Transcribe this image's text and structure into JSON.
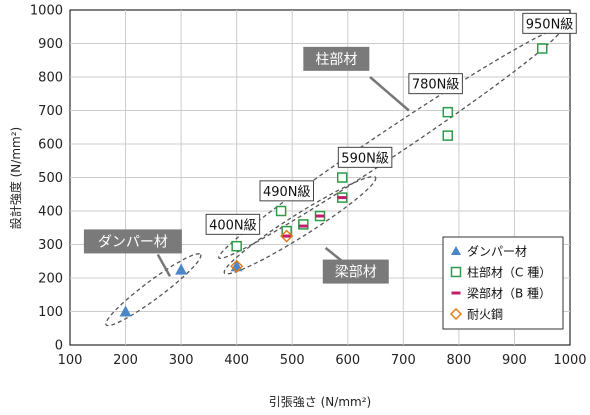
{
  "chart_data": {
    "type": "scatter",
    "xlabel": "引張強さ (N/mm²)",
    "ylabel": "設計強度 (N/mm²)",
    "xlim": [
      100,
      1000
    ],
    "ylim": [
      0,
      1000
    ],
    "xticks": [
      100,
      200,
      300,
      400,
      500,
      600,
      700,
      800,
      900,
      1000
    ],
    "yticks": [
      0,
      100,
      200,
      300,
      400,
      500,
      600,
      700,
      800,
      900,
      1000
    ],
    "grid": true,
    "legend_position": "bottom-right",
    "series": [
      {
        "name": "ダンパー材",
        "marker": "triangle",
        "color": "#4a86c8",
        "points": [
          [
            200,
            100
          ],
          [
            300,
            225
          ],
          [
            400,
            235
          ]
        ]
      },
      {
        "name": "柱部材（C 種）",
        "marker": "square-open",
        "color": "#2e9b46",
        "points": [
          [
            400,
            295
          ],
          [
            480,
            400
          ],
          [
            490,
            340
          ],
          [
            520,
            360
          ],
          [
            550,
            385
          ],
          [
            590,
            440
          ],
          [
            590,
            500
          ],
          [
            780,
            625
          ],
          [
            780,
            695
          ],
          [
            950,
            885
          ]
        ]
      },
      {
        "name": "梁部材（B 種）",
        "marker": "dash",
        "color": "#c21e6a",
        "points": [
          [
            490,
            325
          ],
          [
            520,
            355
          ],
          [
            550,
            385
          ],
          [
            590,
            440
          ]
        ]
      },
      {
        "name": "耐火鋼",
        "marker": "diamond-open",
        "color": "#e07b1a",
        "points": [
          [
            400,
            235
          ],
          [
            490,
            325
          ]
        ]
      }
    ],
    "grade_labels": [
      "400N級",
      "490N級",
      "590N級",
      "780N級",
      "950N級"
    ],
    "callouts": [
      "ダンパー材",
      "柱部材",
      "梁部材"
    ]
  }
}
